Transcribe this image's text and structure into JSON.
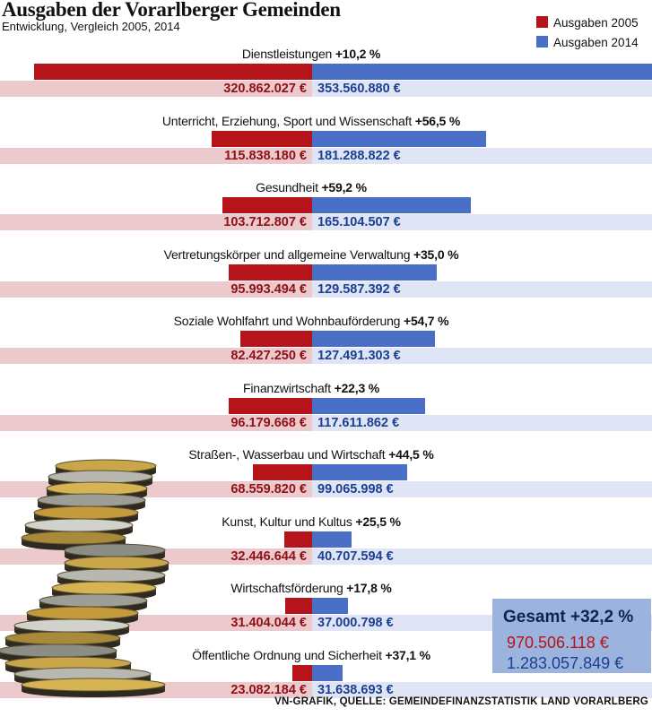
{
  "header": {
    "title": "Ausgaben der Vorarlberger Gemeinden",
    "subtitle": "Entwicklung, Vergleich 2005, 2014"
  },
  "legend": [
    {
      "label": "Ausgaben 2005",
      "color": "#b5141a"
    },
    {
      "label": "Ausgaben 2014",
      "color": "#4a6fc7"
    }
  ],
  "chart_data": {
    "type": "bar",
    "title": "Ausgaben der Vorarlberger Gemeinden",
    "subtitle": "Entwicklung, Vergleich 2005, 2014",
    "colors": {
      "y2005": "#b5141a",
      "y2014": "#4a6fc7",
      "band2005": "#ebc9cd",
      "band2014": "#dfe5f4"
    },
    "categories": [
      {
        "name": "Dienstleistungen",
        "change": "+10,2 %",
        "v2005": 320862027,
        "v2014": 353560880,
        "label2005": "320.862.027 €",
        "label2014": "353.560.880 €"
      },
      {
        "name": "Unterricht, Erziehung, Sport und Wissenschaft",
        "change": "+56,5 %",
        "v2005": 115838180,
        "v2014": 181288822,
        "label2005": "115.838.180 €",
        "label2014": "181.288.822 €"
      },
      {
        "name": "Gesundheit",
        "change": "+59,2 %",
        "v2005": 103712807,
        "v2014": 165104507,
        "label2005": "103.712.807 €",
        "label2014": "165.104.507 €"
      },
      {
        "name": "Vertretungskörper und allgemeine Verwaltung",
        "change": "+35,0 %",
        "v2005": 95993494,
        "v2014": 129587392,
        "label2005": "95.993.494 €",
        "label2014": "129.587.392 €"
      },
      {
        "name": "Soziale Wohlfahrt und Wohnbauförderung",
        "change": "+54,7 %",
        "v2005": 82427250,
        "v2014": 127491303,
        "label2005": "82.427.250 €",
        "label2014": "127.491.303 €"
      },
      {
        "name": "Finanzwirtschaft",
        "change": "+22,3 %",
        "v2005": 96179668,
        "v2014": 117611862,
        "label2005": "96.179.668 €",
        "label2014": "117.611.862 €"
      },
      {
        "name": "Straßen-, Wasserbau und Wirtschaft",
        "change": "+44,5 %",
        "v2005": 68559820,
        "v2014": 99065998,
        "label2005": "68.559.820 €",
        "label2014": "99.065.998 €"
      },
      {
        "name": "Kunst, Kultur und Kultus",
        "change": "+25,5 %",
        "v2005": 32446644,
        "v2014": 40707594,
        "label2005": "32.446.644 €",
        "label2014": "40.707.594 €"
      },
      {
        "name": "Wirtschaftsförderung",
        "change": "+17,8 %",
        "v2005": 31404044,
        "v2014": 37000798,
        "label2005": "31.404.044 €",
        "label2014": "37.000.798 €"
      },
      {
        "name": "Öffentliche Ordnung und Sicherheit",
        "change": "+37,1 %",
        "v2005": 23082184,
        "v2014": 31638693,
        "label2005": "23.082.184 €",
        "label2014": "31.638.693 €"
      }
    ]
  },
  "total": {
    "label": "Gesamt +32,2 %",
    "v2005": "970.506.118 €",
    "v2014": "1.283.057.849 €"
  },
  "source": "VN-GRAFIK, QUELLE: GEMEINDEFINANZSTATISTIK LAND VORARLBERG",
  "illustration": "coin-stack-icon"
}
